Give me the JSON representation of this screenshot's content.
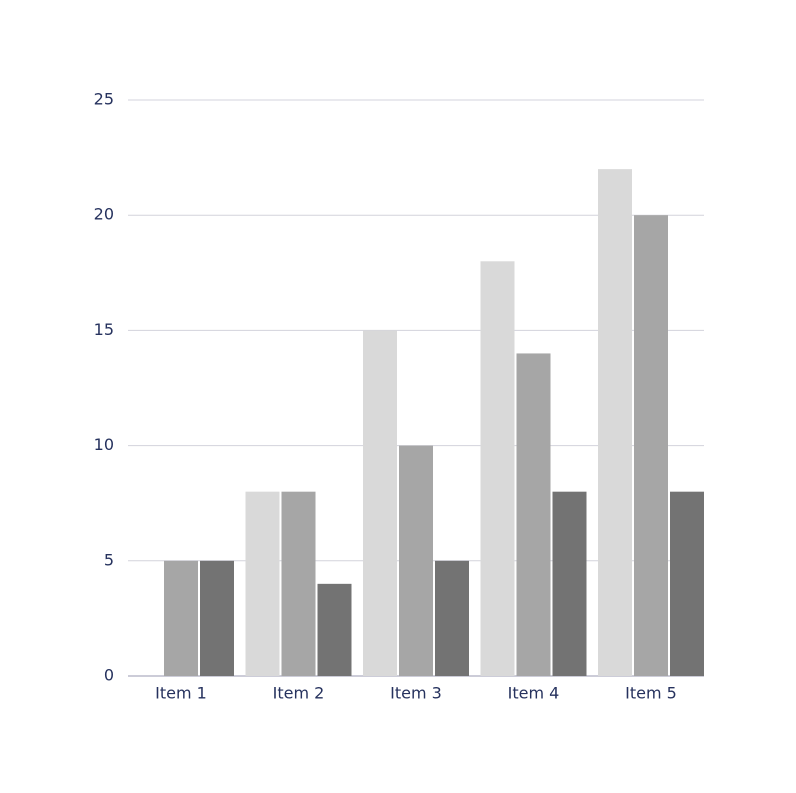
{
  "chart_data": {
    "type": "bar",
    "categories": [
      "Item 1",
      "Item 2",
      "Item 3",
      "Item 4",
      "Item 5"
    ],
    "series": [
      {
        "color": "#d9d9d9",
        "values": [
          0,
          8,
          15,
          18,
          22
        ]
      },
      {
        "color": "#a6a6a6",
        "values": [
          5,
          8,
          10,
          14,
          20
        ]
      },
      {
        "color": "#737373",
        "values": [
          5,
          4,
          5,
          8,
          8
        ]
      }
    ],
    "ylim": [
      0,
      25
    ],
    "yticks": [
      0,
      5,
      10,
      15,
      20,
      25
    ],
    "grid": true
  }
}
